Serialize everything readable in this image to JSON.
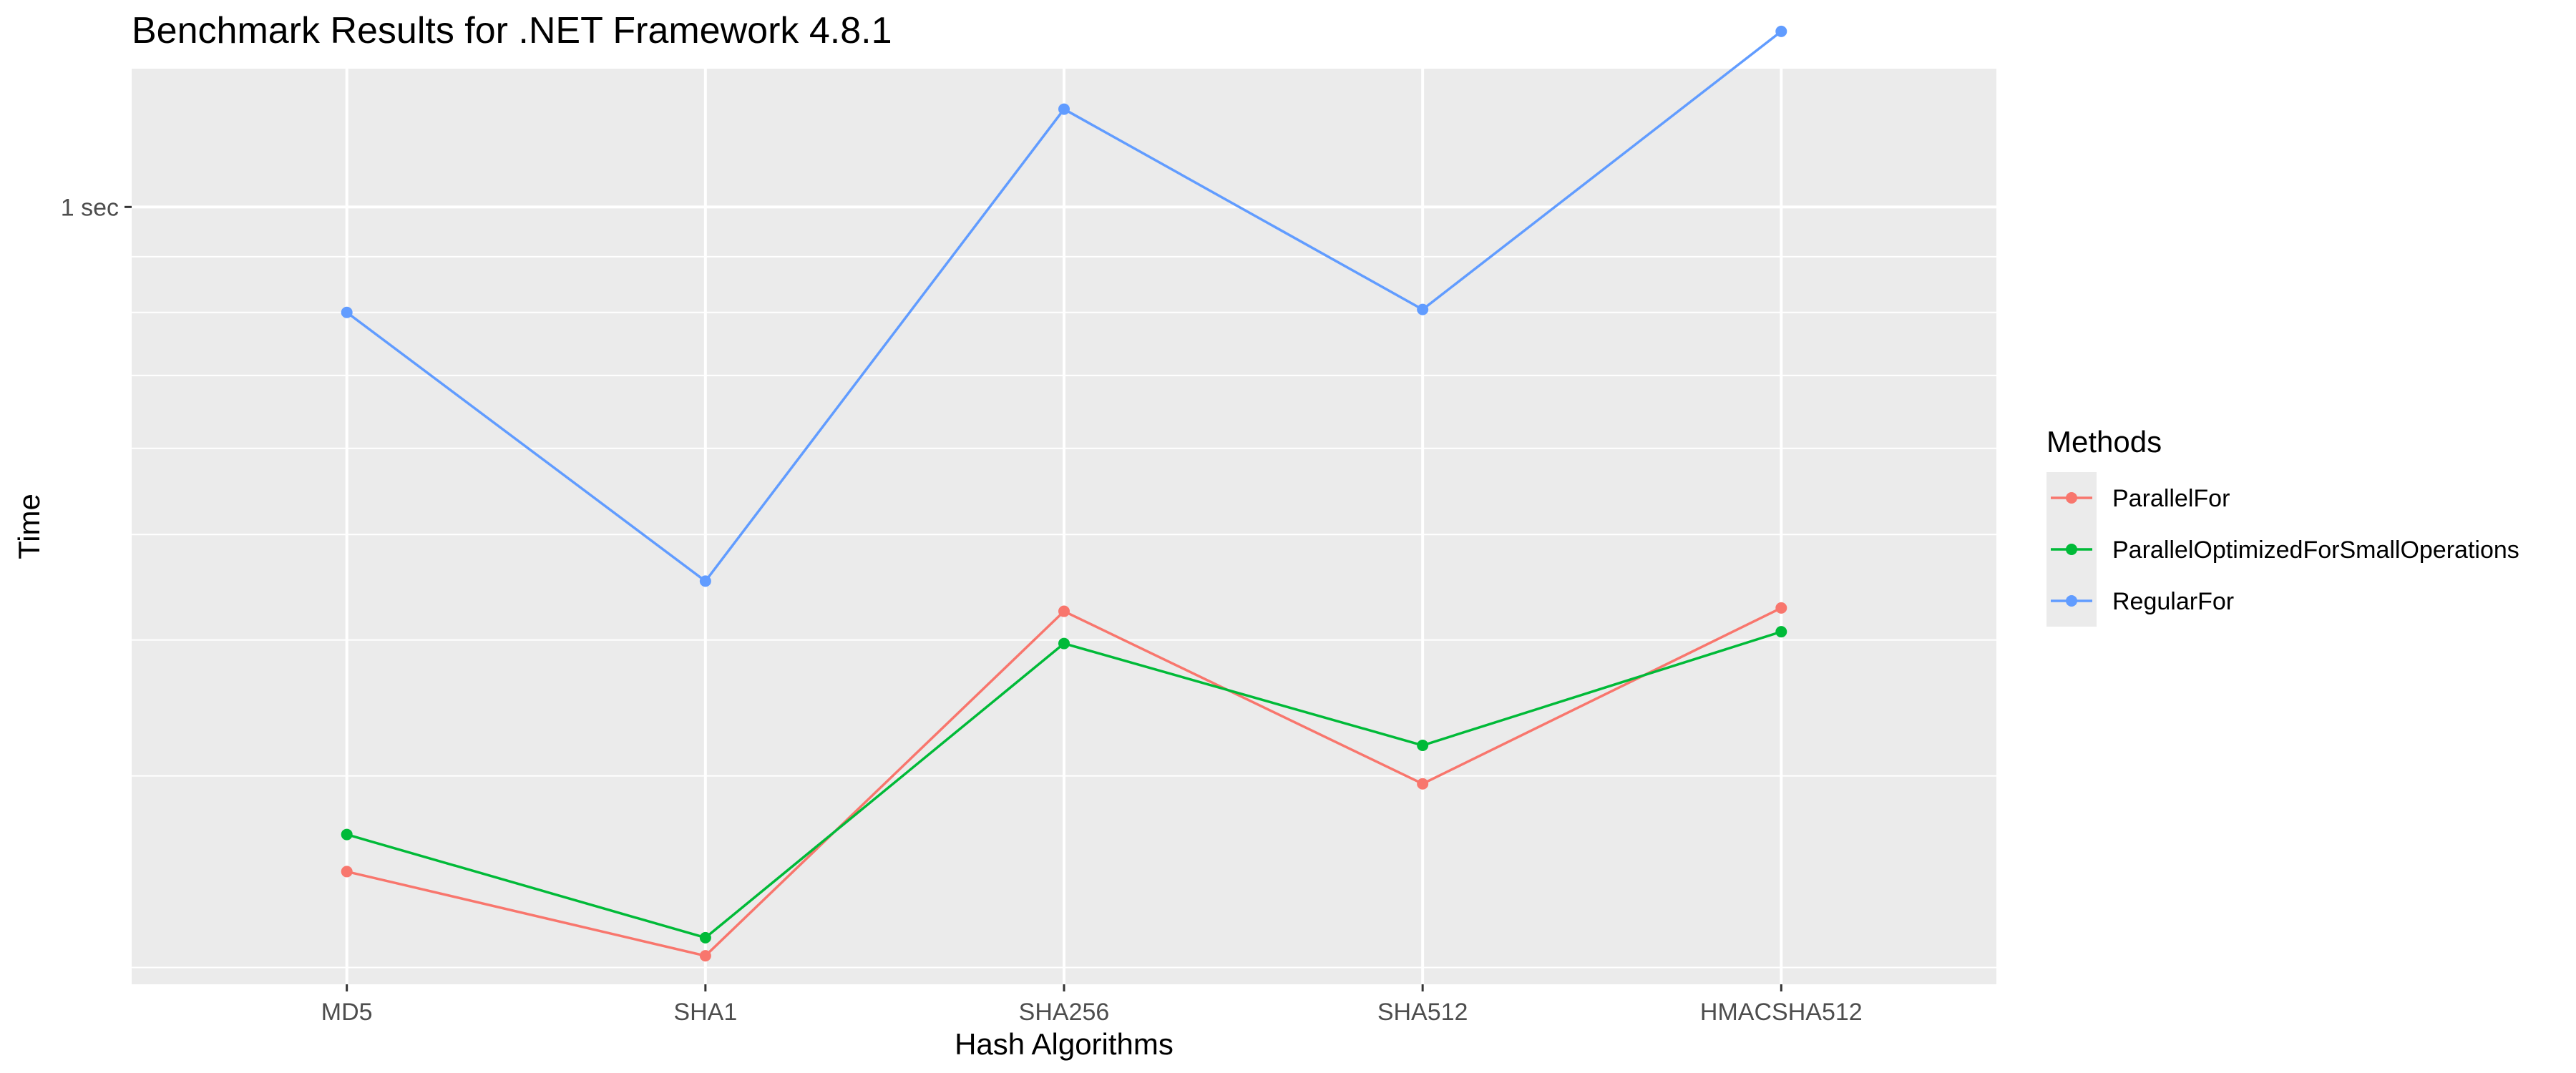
{
  "chart_data": {
    "type": "line",
    "title": "Benchmark Results for  .NET Framework 4.8.1",
    "xlabel": "Hash Algorithms",
    "ylabel": "Time",
    "categories": [
      "MD5",
      "SHA1",
      "SHA256",
      "SHA512",
      "HMACSHA512"
    ],
    "y_scale": "log",
    "ylim": [
      0.193,
      1.34
    ],
    "y_ticks": [
      {
        "value": 1,
        "label": "1 sec"
      }
    ],
    "y_minor_grid": [
      1.0,
      0.9,
      0.8,
      0.7,
      0.6,
      0.5,
      0.4,
      0.3,
      0.2
    ],
    "grid": true,
    "legend": {
      "title": "Methods",
      "position": "right"
    },
    "series": [
      {
        "name": "ParallelFor",
        "color": "#F8766D",
        "values": [
          0.245,
          0.205,
          0.425,
          0.295,
          0.428
        ]
      },
      {
        "name": "ParallelOptimizedForSmallOperations",
        "color": "#00BA38",
        "values": [
          0.265,
          0.213,
          0.397,
          0.32,
          0.407
        ]
      },
      {
        "name": "RegularFor",
        "color": "#619CFF",
        "values": [
          0.8,
          0.453,
          1.23,
          0.805,
          1.45
        ]
      }
    ]
  }
}
